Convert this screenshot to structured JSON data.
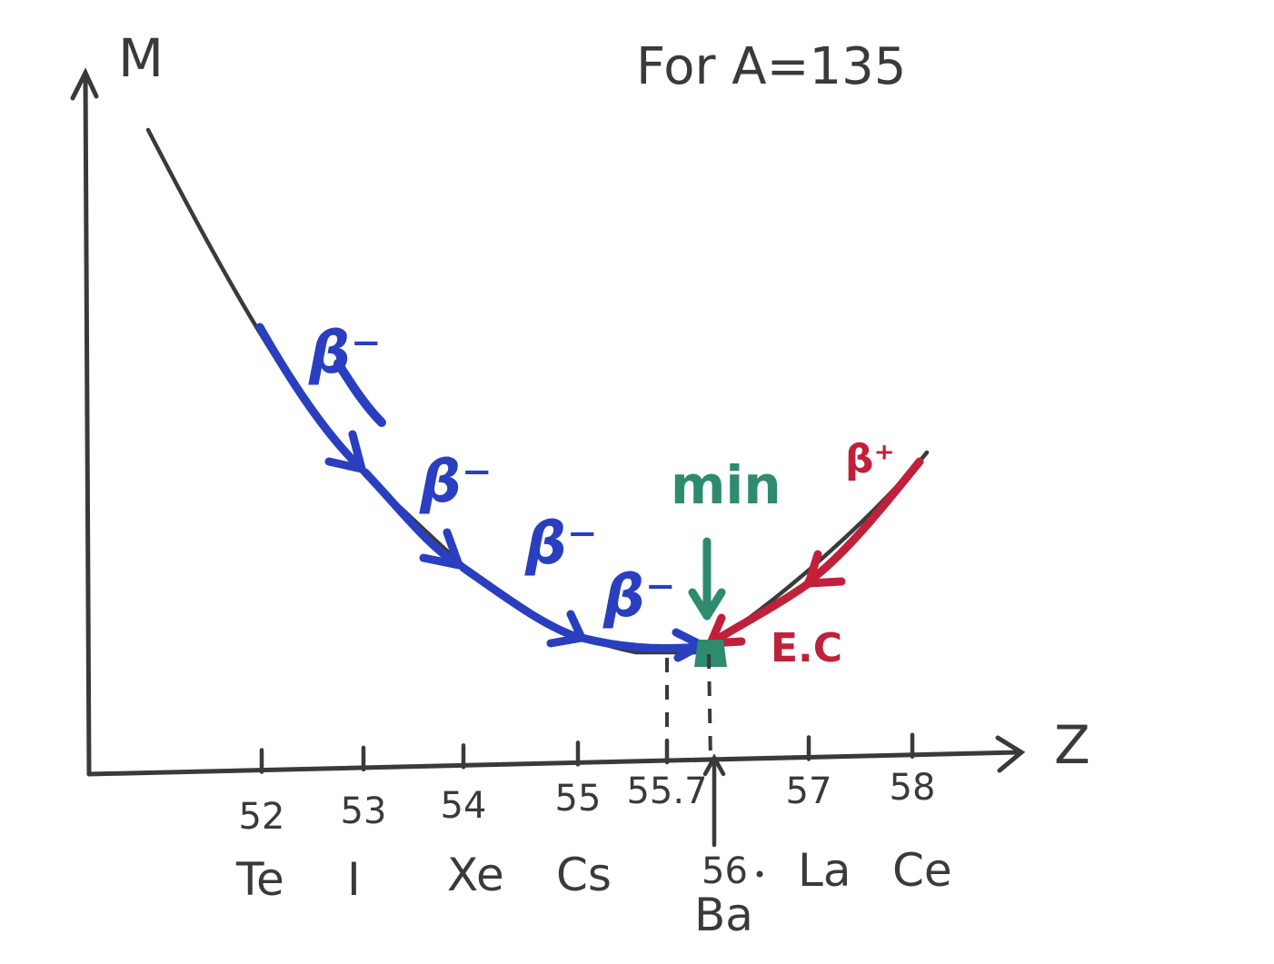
{
  "title": "For A=135",
  "axes": {
    "y_label": "M",
    "x_label": "Z"
  },
  "z_ticks": [
    {
      "z": "52",
      "element": "Te"
    },
    {
      "z": "53",
      "element": "I"
    },
    {
      "z": "54",
      "element": "Xe"
    },
    {
      "z": "55",
      "element": "Cs"
    },
    {
      "z": "55.7",
      "element": ""
    },
    {
      "z": "56",
      "element": "Ba"
    },
    {
      "z": "57",
      "element": "La"
    },
    {
      "z": "58",
      "element": "Ce"
    }
  ],
  "annotations": {
    "beta_minus": "β⁻",
    "beta_plus": "β⁺",
    "electron_capture": "E.C",
    "minimum": "min"
  },
  "colors": {
    "curve": "#3a3a3a",
    "beta_minus": "#2a3fbf",
    "beta_plus_ec": "#c0203a",
    "minimum": "#2e8b6e"
  }
}
